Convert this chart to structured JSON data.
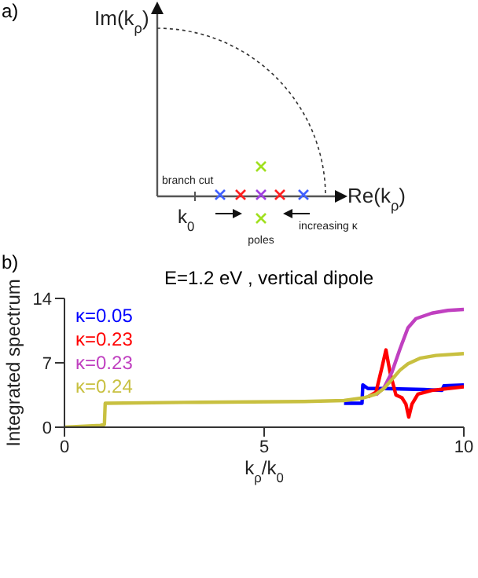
{
  "chart_data": [
    {
      "type": "other",
      "title": "a)",
      "annotations": [
        "Im(k$_{ρ}$)",
        "Re(k$_{ρ}$)",
        "branch cut",
        "k$_{0}$",
        "poles",
        "increasing κ"
      ]
    },
    {
      "type": "line",
      "title": "E=1.2 eV , vertical dipole",
      "subtitle": "b)",
      "xlabel": "k$_{ρ}$/k$_{0}$",
      "ylabel": "Integrated spectrum",
      "xlim": [
        0,
        10
      ],
      "ylim": [
        0,
        14
      ],
      "xticks": [
        0,
        5,
        10
      ],
      "yticks": [
        0,
        7,
        14
      ],
      "grid": false,
      "legend": "top left",
      "marker": "none",
      "line_style": "solid",
      "series": [
        {
          "name": "κ=0.05",
          "color": "#0000ff",
          "x": [
            7,
            7.45,
            7.47,
            7.6,
            8,
            9,
            9.45,
            9.5,
            10
          ],
          "values": [
            2.6,
            2.6,
            4.6,
            4.2,
            4.2,
            4.1,
            4.0,
            4.5,
            4.6
          ]
        },
        {
          "name": "κ=0.23",
          "color": "#ff0000",
          "x": [
            7.6,
            7.8,
            7.95,
            8.05,
            8.15,
            8.3,
            8.45,
            8.55,
            8.62,
            8.7,
            8.85,
            9.2,
            9.6,
            10
          ],
          "values": [
            3.3,
            3.8,
            6.5,
            8.4,
            6.0,
            3.5,
            3.2,
            2.5,
            1.1,
            2.5,
            3.6,
            4.0,
            4.2,
            4.4
          ]
        },
        {
          "name": "κ=0.23",
          "color": "#c040c0",
          "x": [
            7.8,
            8.0,
            8.2,
            8.4,
            8.6,
            8.8,
            9.2,
            9.6,
            10
          ],
          "values": [
            3.5,
            4.3,
            6.0,
            8.5,
            10.8,
            11.8,
            12.4,
            12.7,
            12.8
          ]
        },
        {
          "name": "κ=0.24",
          "color": "#c8c040",
          "x": [
            0,
            0.9,
            1.0,
            1.02,
            3,
            6,
            7,
            7.5,
            7.8,
            8.0,
            8.2,
            8.4,
            8.6,
            8.9,
            9.3,
            10
          ],
          "values": [
            0,
            0.2,
            0.3,
            2.6,
            2.7,
            2.8,
            2.9,
            3.2,
            3.6,
            4.2,
            5.2,
            6.2,
            6.9,
            7.5,
            7.8,
            8.0
          ]
        }
      ]
    }
  ]
}
